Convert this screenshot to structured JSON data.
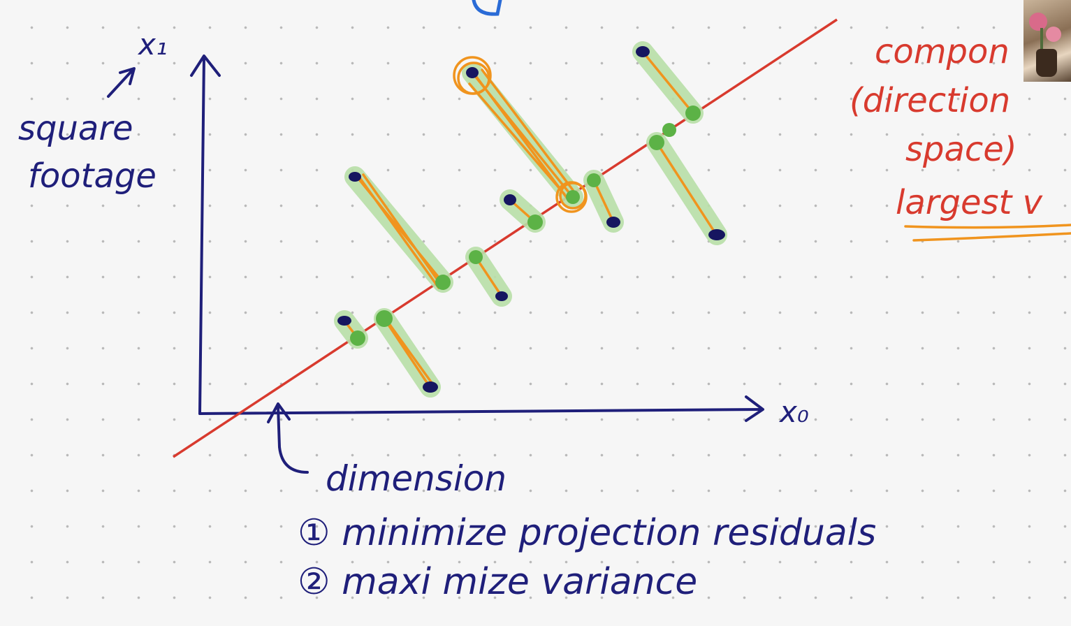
{
  "labels": {
    "x1": "x₁",
    "x0": "x₀",
    "square_footage_line1": "square",
    "square_footage_line2": "footage",
    "dimension": "dimension",
    "point1": "① minimize projection residuals",
    "point2": "② maxi mize variance",
    "right_line1": "compon",
    "right_line2": "(direction",
    "right_line3": "space)",
    "right_line4": "largest v"
  },
  "colors": {
    "axis": "#1f1f7a",
    "principal_line": "#d83a2e",
    "residual": "#f0941e",
    "highlight": "#b9dfa8",
    "projection_point": "#5cb246",
    "data_point": "#161660",
    "red_text": "#d83a2e"
  },
  "icons": {
    "webcam": "webcam-thumbnail",
    "arrow_up": "arrow-up-icon"
  }
}
